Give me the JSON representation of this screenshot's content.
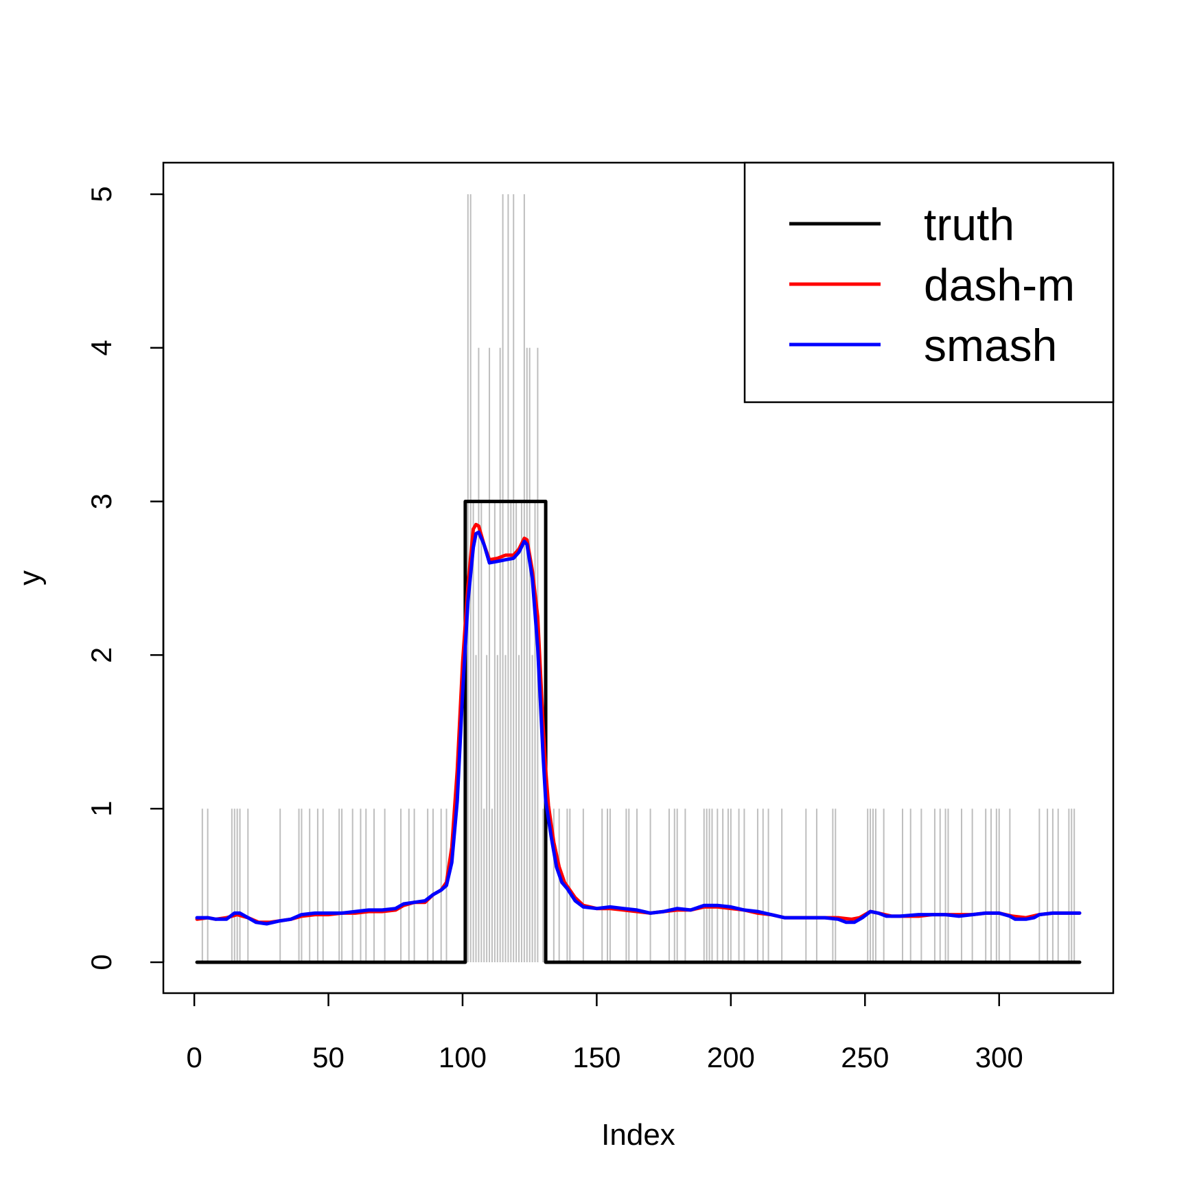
{
  "chart_data": {
    "type": "line",
    "xlabel": "Index",
    "ylabel": "y",
    "xlim": [
      1,
      330
    ],
    "ylim": [
      0,
      5
    ],
    "x_ticks": [
      0,
      50,
      100,
      150,
      200,
      250,
      300
    ],
    "y_ticks": [
      0,
      1,
      2,
      3,
      4,
      5
    ],
    "legend_position": "top-right",
    "legend": [
      {
        "label": "truth",
        "color": "#000000"
      },
      {
        "label": "dash-m",
        "color": "#ff0000"
      },
      {
        "label": "smash",
        "color": "#0000ff"
      }
    ],
    "observations": {
      "name": "y",
      "color": "#bebebe",
      "style": "vertical spikes from 0",
      "points": [
        [
          3,
          1
        ],
        [
          5,
          1
        ],
        [
          14,
          1
        ],
        [
          15,
          1
        ],
        [
          16,
          1
        ],
        [
          17,
          1
        ],
        [
          20,
          1
        ],
        [
          32,
          1
        ],
        [
          39,
          1
        ],
        [
          40,
          1
        ],
        [
          43,
          1
        ],
        [
          46,
          1
        ],
        [
          48,
          1
        ],
        [
          54,
          1
        ],
        [
          55,
          1
        ],
        [
          59,
          1
        ],
        [
          62,
          1
        ],
        [
          64,
          1
        ],
        [
          67,
          1
        ],
        [
          71,
          1
        ],
        [
          77,
          1
        ],
        [
          80,
          1
        ],
        [
          82,
          1
        ],
        [
          87,
          1
        ],
        [
          89,
          1
        ],
        [
          92,
          1
        ],
        [
          94,
          1
        ],
        [
          102,
          5
        ],
        [
          103,
          5
        ],
        [
          104,
          3
        ],
        [
          105,
          2
        ],
        [
          106,
          4
        ],
        [
          107,
          3
        ],
        [
          108,
          1
        ],
        [
          109,
          2
        ],
        [
          110,
          4
        ],
        [
          111,
          1
        ],
        [
          112,
          3
        ],
        [
          113,
          2
        ],
        [
          114,
          4
        ],
        [
          115,
          5
        ],
        [
          116,
          2
        ],
        [
          117,
          5
        ],
        [
          118,
          3
        ],
        [
          119,
          5
        ],
        [
          120,
          3
        ],
        [
          121,
          2
        ],
        [
          122,
          3
        ],
        [
          123,
          5
        ],
        [
          124,
          4
        ],
        [
          125,
          4
        ],
        [
          126,
          2
        ],
        [
          127,
          3
        ],
        [
          128,
          4
        ],
        [
          130,
          1
        ],
        [
          134,
          1
        ],
        [
          136,
          1
        ],
        [
          139,
          1
        ],
        [
          140,
          1
        ],
        [
          145,
          1
        ],
        [
          152,
          1
        ],
        [
          154,
          1
        ],
        [
          155,
          1
        ],
        [
          161,
          1
        ],
        [
          162,
          1
        ],
        [
          165,
          1
        ],
        [
          170,
          1
        ],
        [
          177,
          1
        ],
        [
          179,
          1
        ],
        [
          180,
          1
        ],
        [
          183,
          1
        ],
        [
          190,
          1
        ],
        [
          191,
          1
        ],
        [
          192,
          1
        ],
        [
          193,
          1
        ],
        [
          195,
          1
        ],
        [
          197,
          1
        ],
        [
          199,
          1
        ],
        [
          200,
          1
        ],
        [
          203,
          1
        ],
        [
          205,
          1
        ],
        [
          210,
          1
        ],
        [
          212,
          1
        ],
        [
          214,
          1
        ],
        [
          219,
          1
        ],
        [
          228,
          1
        ],
        [
          232,
          1
        ],
        [
          238,
          1
        ],
        [
          239,
          1
        ],
        [
          251,
          1
        ],
        [
          252,
          1
        ],
        [
          253,
          1
        ],
        [
          254,
          1
        ],
        [
          257,
          1
        ],
        [
          264,
          1
        ],
        [
          267,
          1
        ],
        [
          271,
          1
        ],
        [
          276,
          1
        ],
        [
          278,
          1
        ],
        [
          280,
          1
        ],
        [
          281,
          1
        ],
        [
          286,
          1
        ],
        [
          290,
          1
        ],
        [
          295,
          1
        ],
        [
          297,
          1
        ],
        [
          299,
          1
        ],
        [
          300,
          1
        ],
        [
          304,
          1
        ],
        [
          315,
          1
        ],
        [
          318,
          1
        ],
        [
          320,
          1
        ],
        [
          322,
          1
        ],
        [
          326,
          1
        ],
        [
          327,
          1
        ],
        [
          328,
          1
        ]
      ]
    },
    "series": [
      {
        "name": "truth",
        "color": "#000000",
        "points": [
          [
            1,
            0
          ],
          [
            101,
            0
          ],
          [
            101,
            3
          ],
          [
            131,
            3
          ],
          [
            131,
            0
          ],
          [
            330,
            0
          ]
        ]
      },
      {
        "name": "dash-m",
        "color": "#ff0000",
        "points": [
          [
            1,
            0.28
          ],
          [
            5,
            0.29
          ],
          [
            8,
            0.28
          ],
          [
            12,
            0.29
          ],
          [
            16,
            0.31
          ],
          [
            20,
            0.29
          ],
          [
            24,
            0.26
          ],
          [
            28,
            0.26
          ],
          [
            32,
            0.27
          ],
          [
            36,
            0.28
          ],
          [
            40,
            0.3
          ],
          [
            45,
            0.31
          ],
          [
            50,
            0.31
          ],
          [
            55,
            0.32
          ],
          [
            60,
            0.32
          ],
          [
            65,
            0.33
          ],
          [
            70,
            0.33
          ],
          [
            75,
            0.34
          ],
          [
            78,
            0.37
          ],
          [
            82,
            0.39
          ],
          [
            86,
            0.39
          ],
          [
            89,
            0.44
          ],
          [
            92,
            0.47
          ],
          [
            94,
            0.52
          ],
          [
            96,
            0.75
          ],
          [
            98,
            1.25
          ],
          [
            100,
            1.95
          ],
          [
            102,
            2.45
          ],
          [
            104,
            2.82
          ],
          [
            105,
            2.85
          ],
          [
            106,
            2.84
          ],
          [
            108,
            2.72
          ],
          [
            110,
            2.62
          ],
          [
            113,
            2.63
          ],
          [
            116,
            2.65
          ],
          [
            119,
            2.65
          ],
          [
            121,
            2.69
          ],
          [
            123,
            2.76
          ],
          [
            124,
            2.75
          ],
          [
            126,
            2.55
          ],
          [
            128,
            2.25
          ],
          [
            130,
            1.55
          ],
          [
            131,
            1.25
          ],
          [
            132,
            1.02
          ],
          [
            134,
            0.78
          ],
          [
            136,
            0.62
          ],
          [
            138,
            0.52
          ],
          [
            140,
            0.47
          ],
          [
            142,
            0.42
          ],
          [
            145,
            0.37
          ],
          [
            150,
            0.35
          ],
          [
            155,
            0.35
          ],
          [
            160,
            0.34
          ],
          [
            165,
            0.33
          ],
          [
            170,
            0.32
          ],
          [
            175,
            0.33
          ],
          [
            180,
            0.34
          ],
          [
            185,
            0.34
          ],
          [
            190,
            0.36
          ],
          [
            195,
            0.36
          ],
          [
            200,
            0.35
          ],
          [
            205,
            0.34
          ],
          [
            210,
            0.32
          ],
          [
            215,
            0.31
          ],
          [
            220,
            0.29
          ],
          [
            225,
            0.29
          ],
          [
            230,
            0.29
          ],
          [
            235,
            0.29
          ],
          [
            240,
            0.29
          ],
          [
            245,
            0.28
          ],
          [
            248,
            0.29
          ],
          [
            252,
            0.33
          ],
          [
            255,
            0.32
          ],
          [
            260,
            0.3
          ],
          [
            265,
            0.3
          ],
          [
            270,
            0.3
          ],
          [
            275,
            0.31
          ],
          [
            280,
            0.31
          ],
          [
            285,
            0.31
          ],
          [
            290,
            0.31
          ],
          [
            295,
            0.32
          ],
          [
            300,
            0.32
          ],
          [
            305,
            0.3
          ],
          [
            310,
            0.29
          ],
          [
            315,
            0.31
          ],
          [
            320,
            0.32
          ],
          [
            325,
            0.32
          ],
          [
            330,
            0.32
          ]
        ]
      },
      {
        "name": "smash",
        "color": "#0000ff",
        "points": [
          [
            1,
            0.29
          ],
          [
            5,
            0.29
          ],
          [
            8,
            0.28
          ],
          [
            12,
            0.28
          ],
          [
            15,
            0.32
          ],
          [
            17,
            0.32
          ],
          [
            20,
            0.29
          ],
          [
            23,
            0.26
          ],
          [
            27,
            0.25
          ],
          [
            32,
            0.27
          ],
          [
            36,
            0.28
          ],
          [
            40,
            0.31
          ],
          [
            45,
            0.32
          ],
          [
            50,
            0.32
          ],
          [
            55,
            0.32
          ],
          [
            60,
            0.33
          ],
          [
            65,
            0.34
          ],
          [
            70,
            0.34
          ],
          [
            75,
            0.35
          ],
          [
            78,
            0.38
          ],
          [
            82,
            0.39
          ],
          [
            86,
            0.4
          ],
          [
            89,
            0.44
          ],
          [
            92,
            0.47
          ],
          [
            94,
            0.5
          ],
          [
            96,
            0.65
          ],
          [
            98,
            1.05
          ],
          [
            100,
            1.75
          ],
          [
            102,
            2.35
          ],
          [
            104,
            2.7
          ],
          [
            105,
            2.79
          ],
          [
            106,
            2.8
          ],
          [
            108,
            2.72
          ],
          [
            110,
            2.6
          ],
          [
            113,
            2.61
          ],
          [
            116,
            2.62
          ],
          [
            119,
            2.63
          ],
          [
            121,
            2.67
          ],
          [
            123,
            2.74
          ],
          [
            124,
            2.72
          ],
          [
            126,
            2.5
          ],
          [
            128,
            2.05
          ],
          [
            129,
            1.7
          ],
          [
            130,
            1.35
          ],
          [
            131,
            1.05
          ],
          [
            133,
            0.82
          ],
          [
            135,
            0.62
          ],
          [
            137,
            0.52
          ],
          [
            139,
            0.48
          ],
          [
            142,
            0.4
          ],
          [
            145,
            0.36
          ],
          [
            150,
            0.35
          ],
          [
            155,
            0.36
          ],
          [
            160,
            0.35
          ],
          [
            165,
            0.34
          ],
          [
            170,
            0.32
          ],
          [
            175,
            0.33
          ],
          [
            180,
            0.35
          ],
          [
            185,
            0.34
          ],
          [
            190,
            0.37
          ],
          [
            195,
            0.37
          ],
          [
            200,
            0.36
          ],
          [
            205,
            0.34
          ],
          [
            210,
            0.33
          ],
          [
            215,
            0.31
          ],
          [
            220,
            0.29
          ],
          [
            225,
            0.29
          ],
          [
            230,
            0.29
          ],
          [
            235,
            0.29
          ],
          [
            240,
            0.28
          ],
          [
            243,
            0.26
          ],
          [
            246,
            0.26
          ],
          [
            249,
            0.29
          ],
          [
            252,
            0.33
          ],
          [
            255,
            0.32
          ],
          [
            258,
            0.3
          ],
          [
            263,
            0.3
          ],
          [
            270,
            0.31
          ],
          [
            275,
            0.31
          ],
          [
            280,
            0.31
          ],
          [
            285,
            0.3
          ],
          [
            290,
            0.31
          ],
          [
            295,
            0.32
          ],
          [
            300,
            0.32
          ],
          [
            304,
            0.3
          ],
          [
            306,
            0.28
          ],
          [
            310,
            0.28
          ],
          [
            313,
            0.29
          ],
          [
            315,
            0.31
          ],
          [
            320,
            0.32
          ],
          [
            325,
            0.32
          ],
          [
            330,
            0.32
          ]
        ]
      }
    ]
  }
}
